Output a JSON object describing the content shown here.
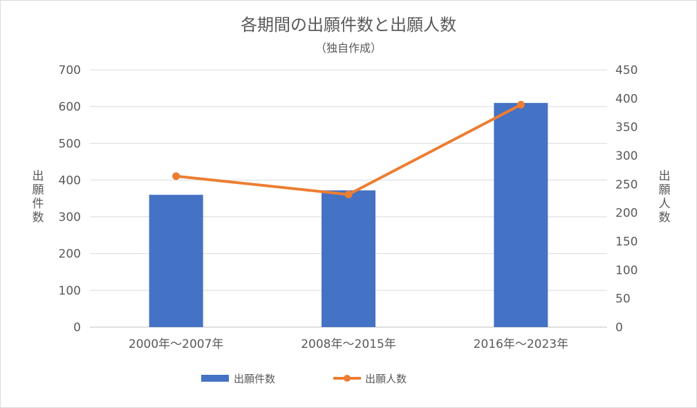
{
  "chart_data": {
    "type": "bar",
    "title": "各期間の出願件数と出願人数",
    "subtitle": "（独自作成）",
    "categories": [
      "2000年～2007年",
      "2008年～2015年",
      "2016年～2023年"
    ],
    "series": [
      {
        "name": "出願件数",
        "type": "bar",
        "axis": "left",
        "color": "#4472c4",
        "values": [
          360,
          372,
          610
        ]
      },
      {
        "name": "出願人数",
        "type": "line",
        "axis": "right",
        "color": "#ed7d31",
        "values": [
          264,
          232,
          389
        ]
      }
    ],
    "y_left": {
      "label": "出願件数",
      "min": 0,
      "max": 700,
      "step": 100,
      "ticks": [
        "0",
        "100",
        "200",
        "300",
        "400",
        "500",
        "600",
        "700"
      ]
    },
    "y_right": {
      "label": "出願人数",
      "min": 0,
      "max": 450,
      "step": 50,
      "ticks": [
        "0",
        "50",
        "100",
        "150",
        "200",
        "250",
        "300",
        "350",
        "400",
        "450"
      ]
    },
    "grid": true,
    "legend_position": "bottom"
  }
}
